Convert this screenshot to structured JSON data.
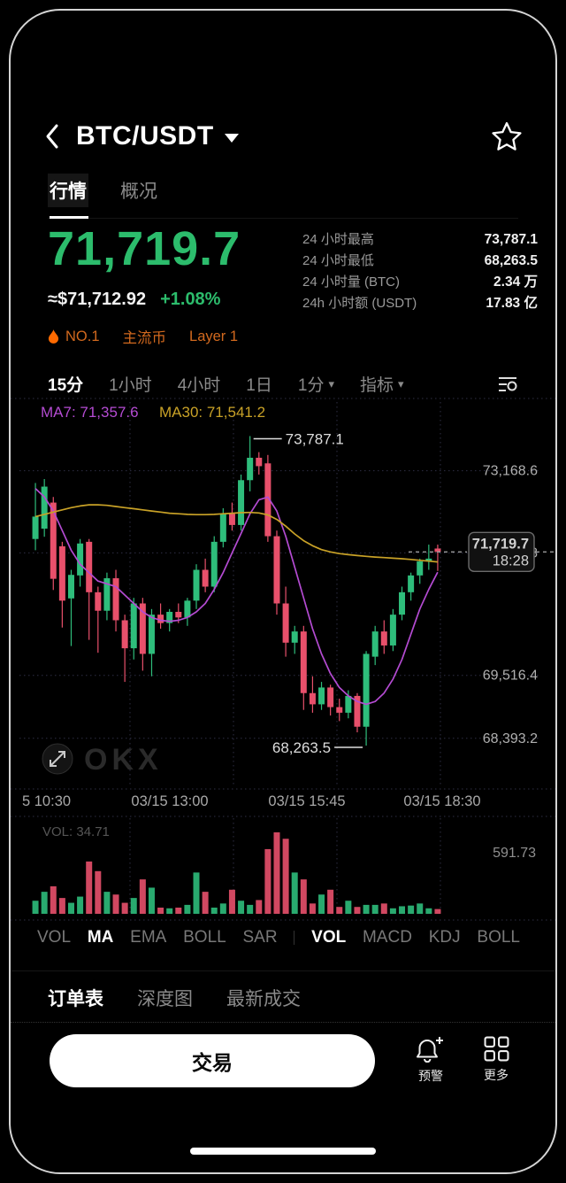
{
  "header": {
    "title": "BTC/USDT"
  },
  "tabs": [
    {
      "label": "行情",
      "active": true
    },
    {
      "label": "概况",
      "active": false
    }
  ],
  "price": {
    "last": "71,719.7",
    "fiat": "≈$71,712.92",
    "change": "+1.08%"
  },
  "stats": [
    {
      "label": "24 小时最高",
      "value": "73,787.1"
    },
    {
      "label": "24 小时最低",
      "value": "68,263.5"
    },
    {
      "label": "24 小时量 (BTC)",
      "value": "2.34 万"
    },
    {
      "label": "24h 小时额 (USDT)",
      "value": "17.83 亿"
    }
  ],
  "badges": [
    {
      "label": "NO.1",
      "flame": true
    },
    {
      "label": "主流币",
      "flame": false
    },
    {
      "label": "Layer 1",
      "flame": false
    }
  ],
  "timeframes": [
    {
      "label": "15分",
      "active": true,
      "caret": false
    },
    {
      "label": "1小时",
      "active": false,
      "caret": false
    },
    {
      "label": "4小时",
      "active": false,
      "caret": false
    },
    {
      "label": "1日",
      "active": false,
      "caret": false
    },
    {
      "label": "1分",
      "active": false,
      "caret": true
    },
    {
      "label": "指标",
      "active": false,
      "caret": true
    }
  ],
  "colors": {
    "up": "#2EBD7B",
    "down": "#E8506B",
    "price_green": "#2CBC6C",
    "badge_orange": "#D2691E",
    "ma7": "#B44BD2",
    "ma30": "#C9A227",
    "grid": "#2e2e44",
    "axis_text": "#b0b0b0"
  },
  "chart_data": {
    "type": "candlestick",
    "title": "BTC/USDT 15分 K线",
    "interval": "15分",
    "ma_labels": [
      {
        "text": "MA7: 71,357.6",
        "color": "#B44BD2"
      },
      {
        "text": "MA30: 71,541.2",
        "color": "#C9A227"
      }
    ],
    "ylim": [
      67600,
      74300
    ],
    "y_axis_labels": [
      "73,168.6",
      "71,702.8",
      "69,516.4",
      "68,393.2"
    ],
    "x_axis_labels": [
      "5 10:30",
      "03/15 13:00",
      "03/15 15:45",
      "03/15 18:30"
    ],
    "high_annotation": "73,787.1",
    "low_annotation": "68,263.5",
    "high_index": 24,
    "low_index": 37,
    "current_price": "71,719.7",
    "current_time": "18:28",
    "current_price_value": 71719.7,
    "candles": [
      [
        71950,
        72950,
        71750,
        72350
      ],
      [
        72135,
        73020,
        71990,
        72885
      ],
      [
        72600,
        72700,
        71040,
        71240
      ],
      [
        71820,
        71900,
        70370,
        70850
      ],
      [
        70890,
        71400,
        70040,
        71310
      ],
      [
        71300,
        71950,
        71100,
        71870
      ],
      [
        71900,
        71950,
        70150,
        71000
      ],
      [
        71000,
        71100,
        69920,
        70670
      ],
      [
        70670,
        71350,
        70500,
        71250
      ],
      [
        71250,
        71400,
        70300,
        70500
      ],
      [
        70500,
        70600,
        69400,
        70000
      ],
      [
        70000,
        70900,
        69800,
        70800
      ],
      [
        70800,
        70900,
        69600,
        69900
      ],
      [
        69900,
        70700,
        69500,
        70600
      ],
      [
        70600,
        70800,
        70350,
        70450
      ],
      [
        70450,
        70700,
        70300,
        70650
      ],
      [
        70650,
        70800,
        70450,
        70550
      ],
      [
        70550,
        70900,
        70400,
        70850
      ],
      [
        70850,
        71500,
        70700,
        71400
      ],
      [
        71400,
        71600,
        71000,
        71100
      ],
      [
        71100,
        72000,
        71000,
        71900
      ],
      [
        71900,
        72500,
        71800,
        72400
      ],
      [
        72400,
        72600,
        72100,
        72200
      ],
      [
        72200,
        73100,
        72100,
        73000
      ],
      [
        73000,
        73787.1,
        72800,
        73400
      ],
      [
        73400,
        73500,
        73100,
        73250
      ],
      [
        73300,
        73450,
        71900,
        72000
      ],
      [
        72000,
        72100,
        70600,
        70800
      ],
      [
        70800,
        71100,
        69850,
        70100
      ],
      [
        70100,
        70400,
        69900,
        70300
      ],
      [
        70300,
        70400,
        68900,
        69200
      ],
      [
        69200,
        69500,
        68850,
        69000
      ],
      [
        69000,
        69400,
        68900,
        69300
      ],
      [
        69300,
        69350,
        68800,
        68950
      ],
      [
        68950,
        69100,
        68700,
        68850
      ],
      [
        68850,
        69250,
        68750,
        69150
      ],
      [
        69150,
        69200,
        68500,
        68600
      ],
      [
        68600,
        69950,
        68263.5,
        69900
      ],
      [
        69850,
        70400,
        69700,
        70300
      ],
      [
        70300,
        70500,
        69900,
        70050
      ],
      [
        70050,
        70700,
        69950,
        70600
      ],
      [
        70600,
        71100,
        70500,
        71000
      ],
      [
        71000,
        71350,
        70850,
        71300
      ],
      [
        71300,
        71600,
        71150,
        71550
      ],
      [
        71550,
        71850,
        71400,
        71600
      ],
      [
        71780,
        71850,
        71380,
        71719.7
      ]
    ],
    "series": [
      {
        "name": "MA7",
        "color": "#B44BD2",
        "values": [
          72850,
          72700,
          72450,
          72100,
          71750,
          71500,
          71350,
          71200,
          71150,
          71100,
          70950,
          70800,
          70650,
          70550,
          70500,
          70480,
          70500,
          70550,
          70650,
          70800,
          71050,
          71350,
          71700,
          72050,
          72400,
          72650,
          72700,
          72450,
          72000,
          71450,
          70900,
          70350,
          69900,
          69550,
          69300,
          69150,
          69050,
          69000,
          69050,
          69200,
          69450,
          69800,
          70250,
          70700,
          71050,
          71357.6
        ]
      },
      {
        "name": "MA30",
        "color": "#C9A227",
        "values": [
          72350,
          72390,
          72430,
          72470,
          72510,
          72540,
          72560,
          72560,
          72550,
          72530,
          72510,
          72490,
          72470,
          72450,
          72430,
          72410,
          72400,
          72390,
          72385,
          72385,
          72390,
          72400,
          72410,
          72420,
          72425,
          72415,
          72380,
          72300,
          72180,
          72040,
          71920,
          71830,
          71760,
          71720,
          71690,
          71670,
          71655,
          71640,
          71628,
          71618,
          71608,
          71598,
          71585,
          71570,
          71555,
          71541.2
        ]
      }
    ],
    "volume": {
      "label": "VOL: 34.71",
      "axis_max_label": "591.73",
      "max": 591.73,
      "values": [
        95,
        160,
        200,
        115,
        80,
        125,
        380,
        310,
        160,
        140,
        80,
        115,
        250,
        190,
        45,
        40,
        45,
        65,
        300,
        160,
        45,
        75,
        175,
        95,
        65,
        100,
        470,
        591.73,
        545,
        300,
        250,
        75,
        140,
        175,
        50,
        95,
        50,
        65,
        65,
        75,
        40,
        55,
        60,
        75,
        40,
        34.71
      ]
    },
    "watermark": "OKX"
  },
  "indicator_bar": {
    "left": [
      "VOL",
      "MA",
      "EMA",
      "BOLL",
      "SAR"
    ],
    "right": [
      "VOL",
      "MACD",
      "KDJ",
      "BOLL"
    ]
  },
  "bottom_tabs": [
    {
      "label": "订单表",
      "active": true
    },
    {
      "label": "深度图",
      "active": false
    },
    {
      "label": "最新成交",
      "active": false
    }
  ],
  "actions": {
    "trade": "交易",
    "alert": "预警",
    "more": "更多"
  }
}
